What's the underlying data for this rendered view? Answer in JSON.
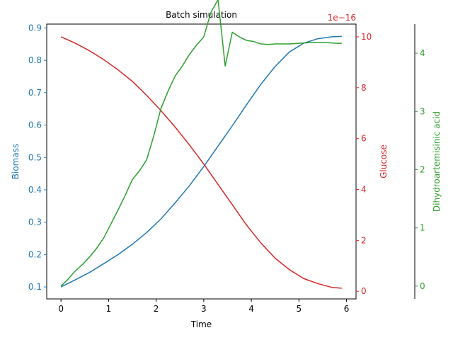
{
  "chart_data": {
    "type": "line",
    "title": "Batch simulation",
    "xlabel": "Time",
    "xlim": [
      -0.3,
      6.2
    ],
    "x_ticks": [
      0,
      1,
      2,
      3,
      4,
      5,
      6
    ],
    "grid": false,
    "legend": "none",
    "axes": [
      {
        "id": "biomass",
        "label": "Biomass",
        "side": "left",
        "color": "#1f77b4",
        "ylim": [
          0.063,
          0.912
        ],
        "ticks": [
          0.1,
          0.2,
          0.3,
          0.4,
          0.5,
          0.6,
          0.7,
          0.8,
          0.9
        ],
        "tick_labels": [
          "0.1",
          "0.2",
          "0.3",
          "0.4",
          "0.5",
          "0.6",
          "0.7",
          "0.8",
          "0.9"
        ]
      },
      {
        "id": "glucose",
        "label": "Glucose",
        "side": "right",
        "color": "#d62728",
        "ylim": [
          -0.3,
          10.5
        ],
        "ticks": [
          0,
          2,
          4,
          6,
          8,
          10
        ],
        "tick_labels": [
          "0",
          "2",
          "4",
          "6",
          "8",
          "10"
        ],
        "offset_text": "1e−16"
      },
      {
        "id": "dha",
        "label": "Dihydroartemisinic acid",
        "side": "right-outer",
        "color": "#2ca02c",
        "ylim": [
          -0.22,
          4.5
        ],
        "ticks": [
          0,
          1,
          2,
          3,
          4
        ],
        "tick_labels": [
          "0",
          "1",
          "2",
          "3",
          "4"
        ]
      }
    ],
    "series": [
      {
        "name": "Biomass",
        "axis": "biomass",
        "x": [
          0,
          0.3,
          0.6,
          0.9,
          1.2,
          1.5,
          1.8,
          2.1,
          2.4,
          2.7,
          3.0,
          3.3,
          3.6,
          3.9,
          4.2,
          4.5,
          4.8,
          5.1,
          5.4,
          5.7,
          5.9
        ],
        "y": [
          0.1,
          0.122,
          0.145,
          0.172,
          0.2,
          0.232,
          0.268,
          0.31,
          0.36,
          0.413,
          0.472,
          0.535,
          0.598,
          0.663,
          0.726,
          0.781,
          0.826,
          0.853,
          0.867,
          0.873,
          0.874
        ]
      },
      {
        "name": "Glucose",
        "axis": "glucose",
        "x": [
          0,
          0.3,
          0.6,
          0.9,
          1.2,
          1.5,
          1.8,
          2.1,
          2.4,
          2.7,
          3.0,
          3.3,
          3.6,
          3.9,
          4.2,
          4.5,
          4.8,
          5.1,
          5.4,
          5.7,
          5.9
        ],
        "y": [
          10.0,
          9.75,
          9.45,
          9.1,
          8.7,
          8.25,
          7.7,
          7.1,
          6.45,
          5.75,
          5.0,
          4.2,
          3.4,
          2.6,
          1.9,
          1.3,
          0.85,
          0.5,
          0.3,
          0.15,
          0.12
        ]
      },
      {
        "name": "Dihydroartemisinic acid",
        "axis": "dha",
        "x": [
          0,
          0.15,
          0.3,
          0.45,
          0.6,
          0.75,
          0.9,
          1.05,
          1.2,
          1.35,
          1.5,
          1.65,
          1.8,
          1.95,
          2.1,
          2.25,
          2.4,
          2.55,
          2.7,
          2.85,
          3.0,
          3.15,
          3.3,
          3.45,
          3.6,
          3.75,
          3.9,
          4.05,
          4.2,
          4.35,
          4.5,
          4.65,
          4.8,
          5.0,
          5.2,
          5.4,
          5.6,
          5.8,
          5.9
        ],
        "y": [
          0,
          0.12,
          0.26,
          0.37,
          0.5,
          0.65,
          0.83,
          1.07,
          1.31,
          1.56,
          1.83,
          1.98,
          2.17,
          2.58,
          3.05,
          3.35,
          3.61,
          3.78,
          3.98,
          4.14,
          4.28,
          4.7,
          4.92,
          3.78,
          4.36,
          4.28,
          4.22,
          4.2,
          4.16,
          4.15,
          4.16,
          4.16,
          4.16,
          4.17,
          4.18,
          4.18,
          4.18,
          4.17,
          4.17
        ]
      }
    ]
  }
}
